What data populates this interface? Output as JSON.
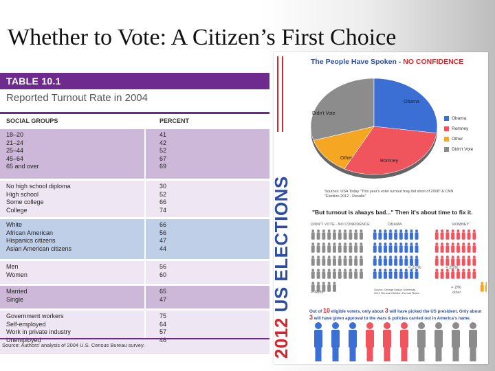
{
  "slide": {
    "title": "Whether to Vote: A Citizen’s First Choice"
  },
  "table": {
    "number": "TABLE 10.1",
    "subtitle": "Reported Turnout Rate in 2004",
    "col_left": "SOCIAL GROUPS",
    "col_right": "PERCENT",
    "groups": [
      {
        "labels": [
          "18–20",
          "21–24",
          "25–44",
          "45–64",
          "65 and over"
        ],
        "values": [
          "41",
          "42",
          "52",
          "67",
          "69"
        ],
        "color": "#cdb8d9"
      },
      {
        "labels": [
          "No high school diploma",
          "High school",
          "Some college",
          "College"
        ],
        "values": [
          "30",
          "52",
          "66",
          "74"
        ],
        "color": "#eee6f3"
      },
      {
        "labels": [
          "White",
          "African American",
          "Hispanics citizens",
          "Asian American citizens"
        ],
        "values": [
          "66",
          "56",
          "47",
          "44"
        ],
        "color": "#bfcfe8"
      },
      {
        "labels": [
          "Men",
          "Women"
        ],
        "values": [
          "56",
          "60"
        ],
        "color": "#eee6f3"
      },
      {
        "labels": [
          "Married",
          "Single"
        ],
        "values": [
          "65",
          "47"
        ],
        "color": "#cdb8d9"
      },
      {
        "labels": [
          "Government workers",
          "Self-employed",
          "Work in private industry",
          "Unemployed"
        ],
        "values": [
          "75",
          "64",
          "57",
          "46"
        ],
        "color": "#eee6f3"
      }
    ],
    "source": "Source: Authors' analysis of 2004 U.S. Census Bureau survey."
  },
  "poster": {
    "vertical_year": "2012",
    "vertical_text": "US ELECTIONS",
    "title_a": "The People Have Spoken - ",
    "title_b": "NO CONFIDENCE",
    "pie_labels": {
      "didnt_vote": "Didn't Vote",
      "obama": "Obama",
      "romney": "Romney",
      "other": "Other"
    },
    "legend": [
      "Obama",
      "Romney",
      "Other",
      "Didn't Vote"
    ],
    "colors": {
      "obama": "#3b6fd4",
      "romney": "#f0545c",
      "other": "#f5a623",
      "didnt_vote": "#8c8c8c",
      "red": "#d7262b",
      "blue": "#2d4da3"
    },
    "source_text": "Sources: USA Today \"This year's voter turnout may fall short of 2008\" & CNN \"Election 2012 - Results\"",
    "quote": "\"But turnout is always bad...\" Then it's about time to fix it.",
    "col_headers": [
      "DIDN'T VOTE - NO CONFIDENCE",
      "OBAMA",
      "ROMNEY"
    ],
    "pct_didnt": "≈ 46%",
    "pct_obama": "≈ 27%",
    "pct_romney": "≈ 25%",
    "pct_other": "≈ 2%",
    "pct_other_label": "other",
    "small_source": "Source: George Mason University, 2012 General Election Turnout Rates",
    "footer_a": "Out of ",
    "footer_10": "10",
    "footer_b": " eligible voters, only about ",
    "footer_3a": "3",
    "footer_c": " will have picked the US president. Only about ",
    "footer_3b": "3",
    "footer_d": " will have given approval to the wars & policies carried out in America's name."
  }
}
